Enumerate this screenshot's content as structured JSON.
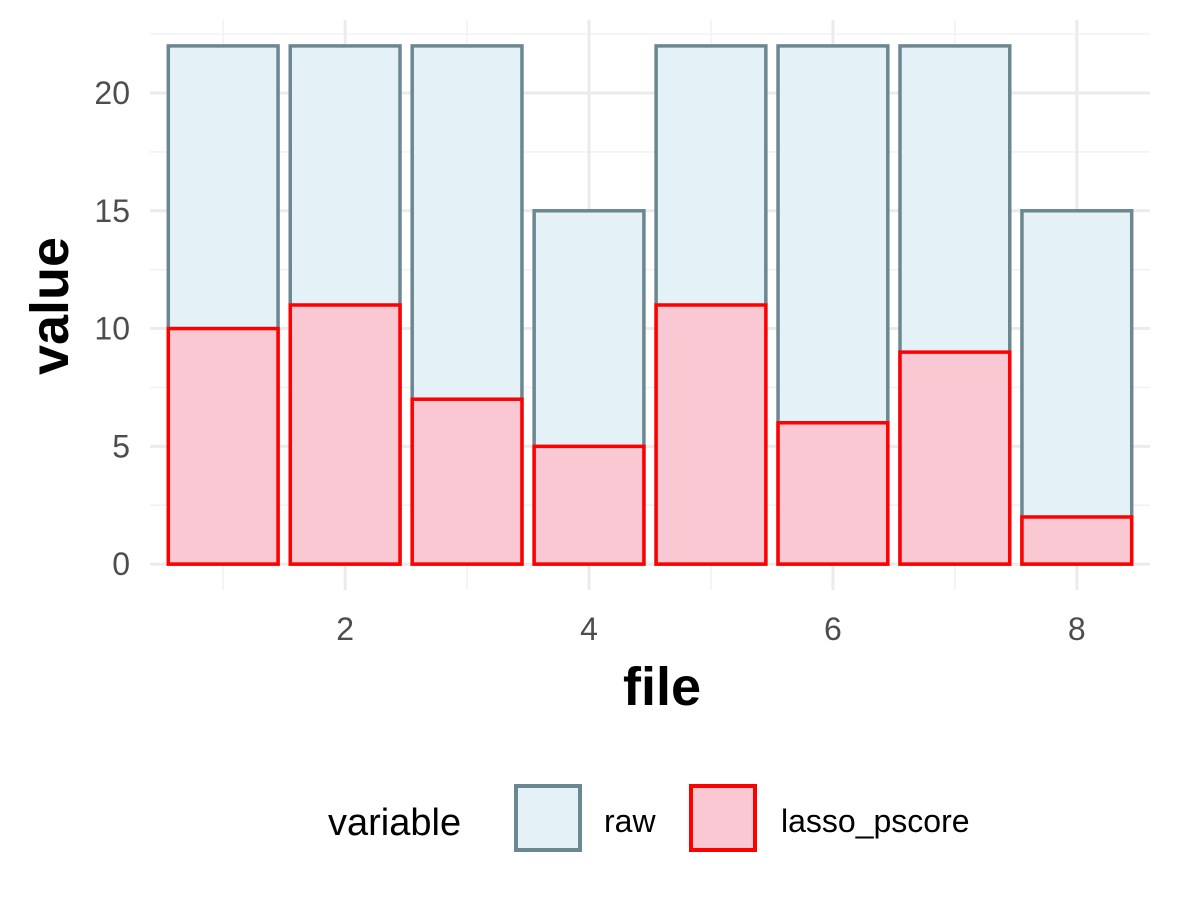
{
  "chart_data": {
    "type": "bar",
    "x": [
      1,
      2,
      3,
      4,
      5,
      6,
      7,
      8
    ],
    "series": [
      {
        "name": "raw",
        "values": [
          22,
          22,
          22,
          15,
          22,
          22,
          22,
          15
        ],
        "fill": "#e4f2f8",
        "stroke": "#6b8791"
      },
      {
        "name": "lasso_pscore",
        "values": [
          10,
          11,
          7,
          5,
          11,
          6,
          9,
          2
        ],
        "fill": "#f9c8d2",
        "stroke": "#ff0000"
      }
    ],
    "xlabel": "file",
    "ylabel": "value",
    "xlim": [
      0.4,
      8.6
    ],
    "ylim": [
      -1.1,
      23.1
    ],
    "x_ticks": [
      2,
      4,
      6,
      8
    ],
    "y_ticks": [
      0,
      5,
      10,
      15,
      20
    ],
    "grid": true,
    "legend": {
      "title": "variable",
      "position": "bottom"
    }
  }
}
